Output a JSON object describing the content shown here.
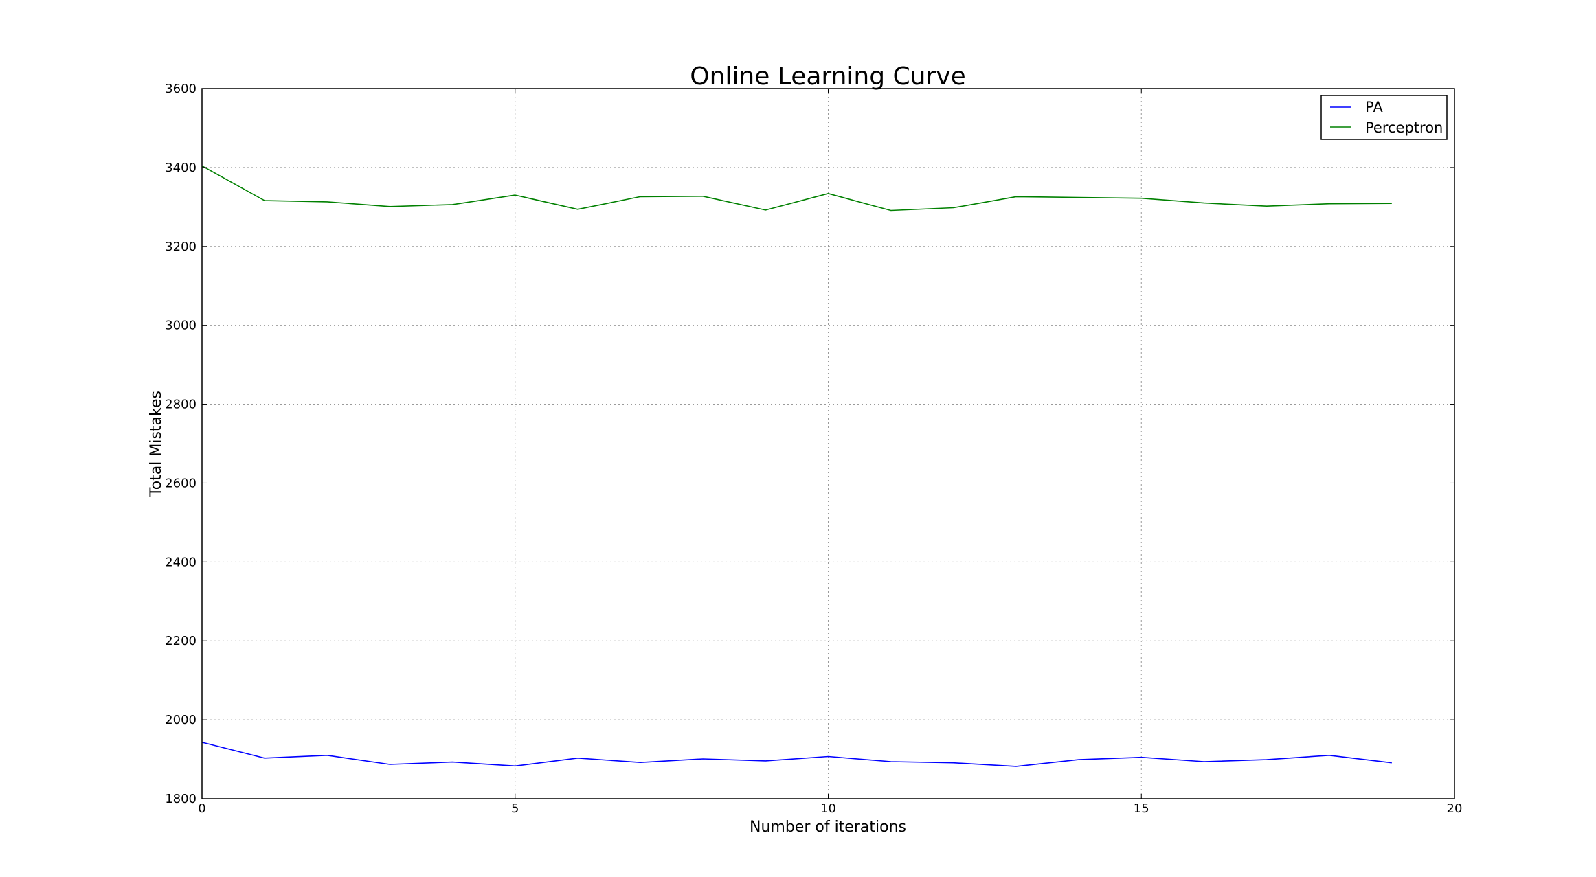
{
  "chart_data": {
    "type": "line",
    "title": "Online Learning Curve",
    "xlabel": "Number of iterations",
    "ylabel": "Total Mistakes",
    "xlim": [
      0,
      20
    ],
    "ylim": [
      1800,
      3600
    ],
    "xticks": [
      0,
      5,
      10,
      15,
      20
    ],
    "yticks": [
      1800,
      2000,
      2200,
      2400,
      2600,
      2800,
      3000,
      3200,
      3400,
      3600
    ],
    "grid": true,
    "legend_position": "top-right",
    "x": [
      0,
      1,
      2,
      3,
      4,
      5,
      6,
      7,
      8,
      9,
      10,
      11,
      12,
      13,
      14,
      15,
      16,
      17,
      18,
      19
    ],
    "series": [
      {
        "name": "PA",
        "color": "#0000ff",
        "values": [
          1943,
          1903,
          1910,
          1887,
          1893,
          1883,
          1903,
          1892,
          1901,
          1896,
          1907,
          1894,
          1891,
          1882,
          1899,
          1905,
          1894,
          1899,
          1910,
          1891
        ]
      },
      {
        "name": "Perceptron",
        "color": "#008000",
        "values": [
          3404,
          3316,
          3313,
          3301,
          3306,
          3330,
          3294,
          3326,
          3327,
          3292,
          3334,
          3291,
          3298,
          3326,
          3324,
          3322,
          3310,
          3302,
          3308,
          3309
        ]
      }
    ]
  }
}
